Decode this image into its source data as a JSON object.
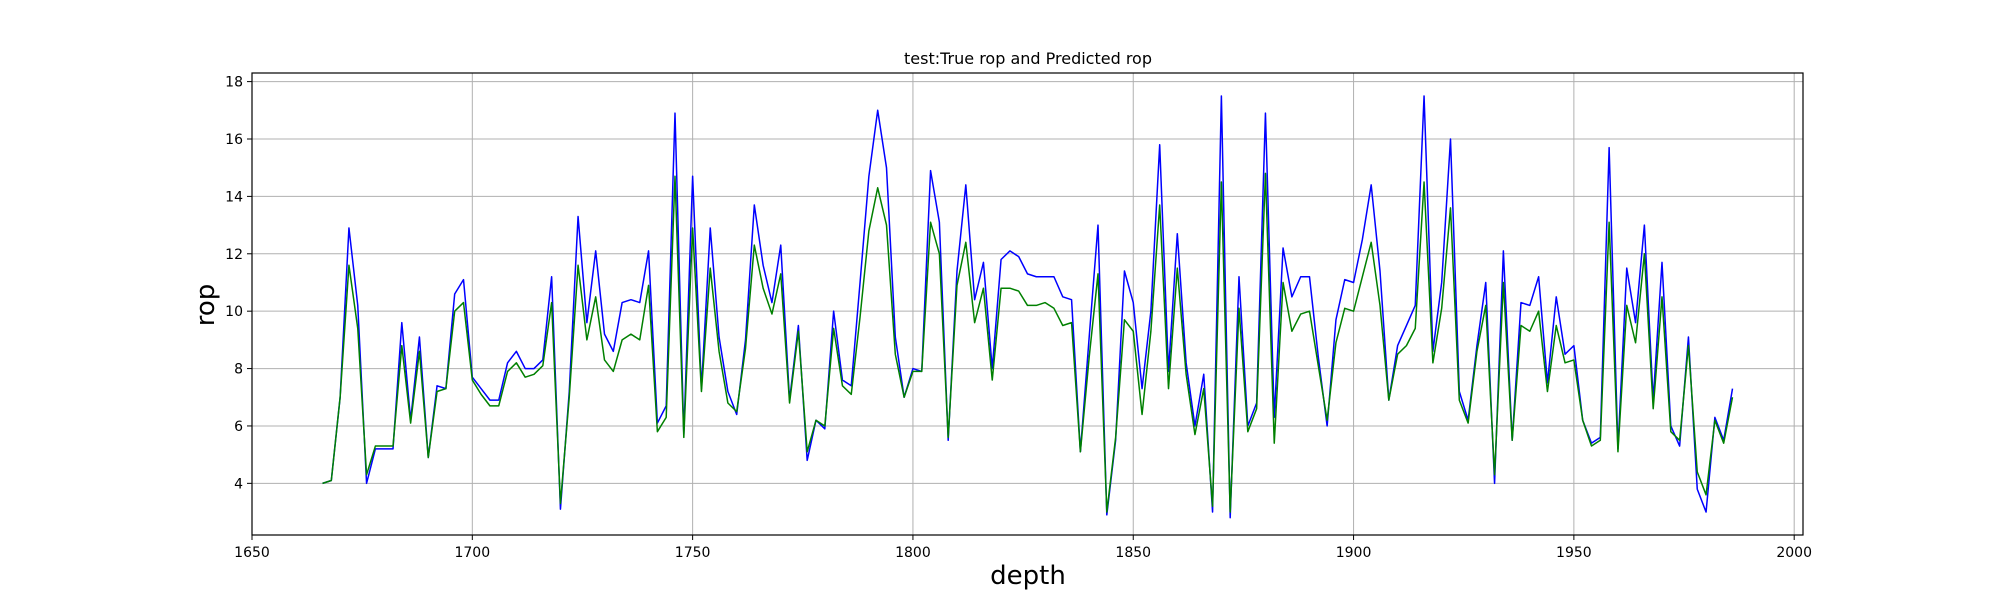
{
  "chart_data": {
    "type": "line",
    "title": "test:True rop and Predicted rop",
    "xlabel": "depth",
    "ylabel": "rop",
    "xlim": [
      1650,
      2002
    ],
    "ylim": [
      2.2,
      18.3
    ],
    "xticks": [
      1650,
      1700,
      1750,
      1800,
      1850,
      1900,
      1950,
      2000
    ],
    "yticks": [
      4,
      6,
      8,
      10,
      12,
      14,
      16,
      18
    ],
    "grid": true,
    "x_start": 1666,
    "x_step": 2,
    "series": [
      {
        "color": "#0000ff",
        "values": [
          4.0,
          4.1,
          7.0,
          12.9,
          10.2,
          4.0,
          5.2,
          5.2,
          5.2,
          9.6,
          6.2,
          9.1,
          4.9,
          7.4,
          7.3,
          10.6,
          11.1,
          7.7,
          7.3,
          6.9,
          6.9,
          8.2,
          8.6,
          8.0,
          8.0,
          8.3,
          11.2,
          3.1,
          7.2,
          13.3,
          9.6,
          12.1,
          9.2,
          8.6,
          10.3,
          10.4,
          10.3,
          12.1,
          6.1,
          6.7,
          16.9,
          5.7,
          14.7,
          7.3,
          12.9,
          9.1,
          7.2,
          6.4,
          9.0,
          13.7,
          11.6,
          10.3,
          12.3,
          6.9,
          9.5,
          4.8,
          6.2,
          5.9,
          10.0,
          7.6,
          7.4,
          11.0,
          14.7,
          17.0,
          15.0,
          9.1,
          7.0,
          8.0,
          7.9,
          14.9,
          13.1,
          5.5,
          11.4,
          14.4,
          10.4,
          11.7,
          8.0,
          11.8,
          12.1,
          11.9,
          11.3,
          11.2,
          11.2,
          11.2,
          10.5,
          10.4,
          5.1,
          9.1,
          13.0,
          2.9,
          5.5,
          11.4,
          10.3,
          7.3,
          10.0,
          15.8,
          7.9,
          12.7,
          8.2,
          6.0,
          7.8,
          3.0,
          17.5,
          2.8,
          11.2,
          6.0,
          6.8,
          16.9,
          6.3,
          12.2,
          10.5,
          11.2,
          11.2,
          8.4,
          6.0,
          9.7,
          11.1,
          11.0,
          12.5,
          14.4,
          11.4,
          6.9,
          8.8,
          9.5,
          10.2,
          17.5,
          8.6,
          11.0,
          16.0,
          7.2,
          6.2,
          8.8,
          11.0,
          4.0,
          12.1,
          5.5,
          10.3,
          10.2,
          11.2,
          7.5,
          10.5,
          8.5,
          8.8,
          6.2,
          5.4,
          5.6,
          15.7,
          5.2,
          11.5,
          9.6,
          13.0,
          6.9,
          11.7,
          6.0,
          5.3,
          9.1,
          3.8,
          3.0,
          6.3,
          5.5,
          7.3
        ]
      },
      {
        "color": "#008000",
        "values": [
          4.0,
          4.1,
          7.0,
          11.6,
          9.4,
          4.3,
          5.3,
          5.3,
          5.3,
          8.8,
          6.1,
          8.6,
          4.9,
          7.2,
          7.3,
          10.0,
          10.3,
          7.6,
          7.1,
          6.7,
          6.7,
          7.9,
          8.2,
          7.7,
          7.8,
          8.1,
          10.3,
          3.3,
          7.0,
          11.6,
          9.0,
          10.5,
          8.3,
          7.9,
          9.0,
          9.2,
          9.0,
          10.9,
          5.8,
          6.3,
          14.7,
          5.6,
          12.9,
          7.2,
          11.5,
          8.6,
          6.8,
          6.5,
          8.7,
          12.3,
          10.8,
          9.9,
          11.3,
          6.8,
          9.3,
          5.1,
          6.2,
          6.0,
          9.4,
          7.4,
          7.1,
          9.8,
          12.8,
          14.3,
          13.0,
          8.5,
          7.0,
          7.9,
          7.9,
          13.1,
          12.0,
          5.6,
          10.9,
          12.4,
          9.6,
          10.8,
          7.6,
          10.8,
          10.8,
          10.7,
          10.2,
          10.2,
          10.3,
          10.1,
          9.5,
          9.6,
          5.1,
          8.4,
          11.3,
          3.0,
          5.6,
          9.7,
          9.3,
          6.4,
          9.3,
          13.7,
          7.3,
          11.5,
          7.8,
          5.7,
          7.3,
          3.2,
          14.5,
          3.0,
          10.1,
          5.8,
          6.6,
          14.8,
          5.4,
          11.0,
          9.3,
          9.9,
          10.0,
          8.1,
          6.2,
          8.9,
          10.1,
          10.0,
          11.2,
          12.4,
          10.2,
          6.9,
          8.5,
          8.8,
          9.4,
          14.5,
          8.2,
          10.1,
          13.6,
          6.9,
          6.1,
          8.6,
          10.2,
          4.3,
          11.0,
          5.5,
          9.5,
          9.3,
          10.0,
          7.2,
          9.5,
          8.2,
          8.3,
          6.2,
          5.3,
          5.5,
          13.1,
          5.1,
          10.2,
          8.9,
          12.0,
          6.6,
          10.5,
          5.8,
          5.5,
          8.8,
          4.4,
          3.6,
          6.2,
          5.4,
          7.0
        ]
      }
    ]
  }
}
